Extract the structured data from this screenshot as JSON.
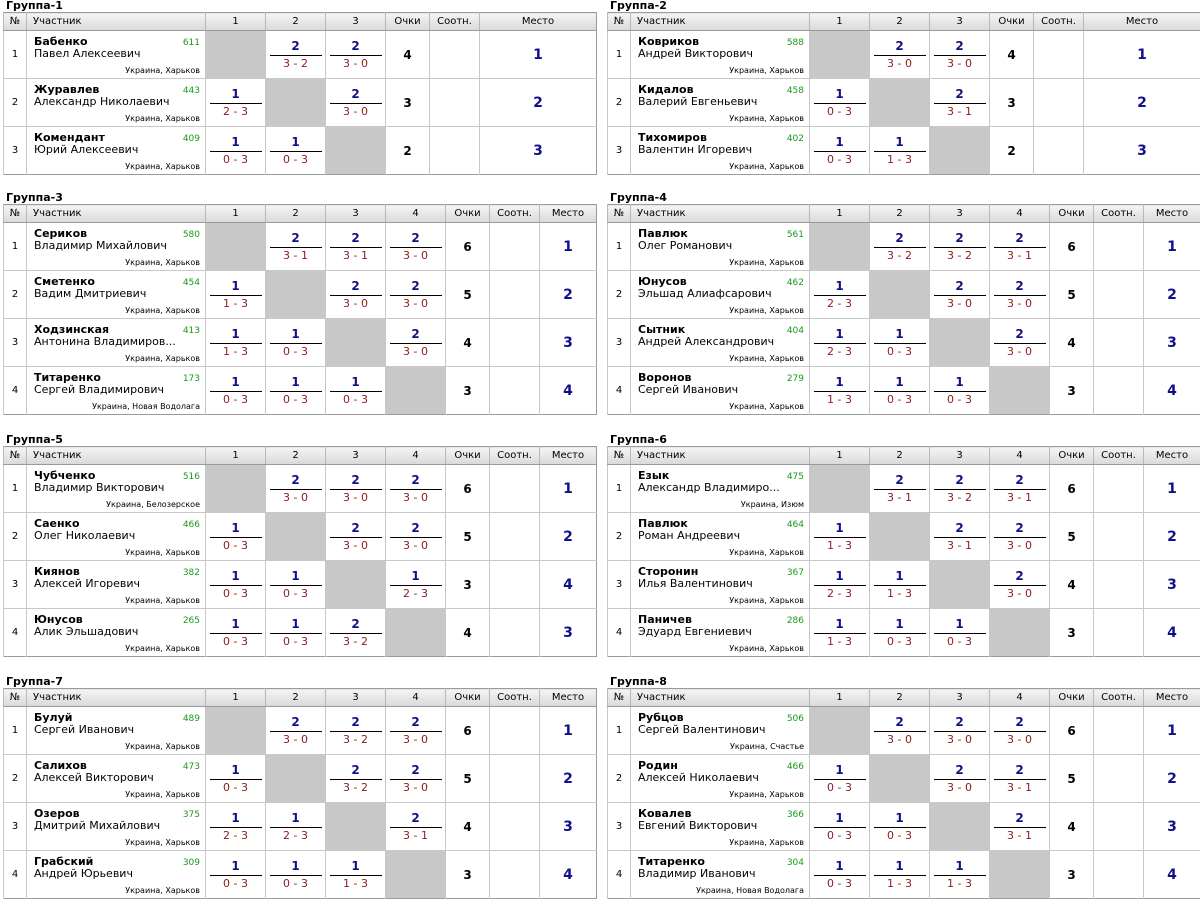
{
  "header_labels": {
    "no": "№",
    "participant": "Участник",
    "points": "Очки",
    "ratio": "Соотн.",
    "place": "Место"
  },
  "groups": [
    {
      "title": "Группа-1",
      "players": [
        {
          "last": "Бабенко",
          "first": "Павел Алексеевич",
          "rating": "611",
          "loc": "Украина, Харьков",
          "res": [
            null,
            [
              "2",
              "3 - 2"
            ],
            [
              "2",
              "3 - 0"
            ]
          ],
          "pts": "4",
          "place": "1"
        },
        {
          "last": "Журавлев",
          "first": "Александр Николаевич",
          "rating": "443",
          "loc": "Украина, Харьков",
          "res": [
            [
              "1",
              "2 - 3"
            ],
            null,
            [
              "2",
              "3 - 0"
            ]
          ],
          "pts": "3",
          "place": "2"
        },
        {
          "last": "Комендант",
          "first": "Юрий Алексеевич",
          "rating": "409",
          "loc": "Украина, Харьков",
          "res": [
            [
              "1",
              "0 - 3"
            ],
            [
              "1",
              "0 - 3"
            ],
            null
          ],
          "pts": "2",
          "place": "3"
        }
      ]
    },
    {
      "title": "Группа-2",
      "players": [
        {
          "last": "Ковриков",
          "first": "Андрей Викторович",
          "rating": "588",
          "loc": "Украина, Харьков",
          "res": [
            null,
            [
              "2",
              "3 - 0"
            ],
            [
              "2",
              "3 - 0"
            ]
          ],
          "pts": "4",
          "place": "1"
        },
        {
          "last": "Кидалов",
          "first": "Валерий Евгеньевич",
          "rating": "458",
          "loc": "Украина, Харьков",
          "res": [
            [
              "1",
              "0 - 3"
            ],
            null,
            [
              "2",
              "3 - 1"
            ]
          ],
          "pts": "3",
          "place": "2"
        },
        {
          "last": "Тихомиров",
          "first": "Валентин Игоревич",
          "rating": "402",
          "loc": "Украина, Харьков",
          "res": [
            [
              "1",
              "0 - 3"
            ],
            [
              "1",
              "1 - 3"
            ],
            null
          ],
          "pts": "2",
          "place": "3"
        }
      ]
    },
    {
      "title": "Группа-3",
      "players": [
        {
          "last": "Сериков",
          "first": "Владимир Михайлович",
          "rating": "580",
          "loc": "Украина, Харьков",
          "res": [
            null,
            [
              "2",
              "3 - 1"
            ],
            [
              "2",
              "3 - 1"
            ],
            [
              "2",
              "3 - 0"
            ]
          ],
          "pts": "6",
          "place": "1"
        },
        {
          "last": "Сметенко",
          "first": "Вадим Дмитриевич",
          "rating": "454",
          "loc": "Украина, Харьков",
          "res": [
            [
              "1",
              "1 - 3"
            ],
            null,
            [
              "2",
              "3 - 0"
            ],
            [
              "2",
              "3 - 0"
            ]
          ],
          "pts": "5",
          "place": "2"
        },
        {
          "last": "Ходзинская",
          "first": "Антонина Владимиров...",
          "rating": "413",
          "loc": "Украина, Харьков",
          "res": [
            [
              "1",
              "1 - 3"
            ],
            [
              "1",
              "0 - 3"
            ],
            null,
            [
              "2",
              "3 - 0"
            ]
          ],
          "pts": "4",
          "place": "3"
        },
        {
          "last": "Титаренко",
          "first": "Сергей Владимирович",
          "rating": "173",
          "loc": "Украина, Новая Водолага",
          "res": [
            [
              "1",
              "0 - 3"
            ],
            [
              "1",
              "0 - 3"
            ],
            [
              "1",
              "0 - 3"
            ],
            null
          ],
          "pts": "3",
          "place": "4"
        }
      ]
    },
    {
      "title": "Группа-4",
      "players": [
        {
          "last": "Павлюк",
          "first": "Олег Романович",
          "rating": "561",
          "loc": "Украина, Харьков",
          "res": [
            null,
            [
              "2",
              "3 - 2"
            ],
            [
              "2",
              "3 - 2"
            ],
            [
              "2",
              "3 - 1"
            ]
          ],
          "pts": "6",
          "place": "1"
        },
        {
          "last": "Юнусов",
          "first": "Эльшад Алиафсарович",
          "rating": "462",
          "loc": "Украина, Харьков",
          "res": [
            [
              "1",
              "2 - 3"
            ],
            null,
            [
              "2",
              "3 - 0"
            ],
            [
              "2",
              "3 - 0"
            ]
          ],
          "pts": "5",
          "place": "2"
        },
        {
          "last": "Сытник",
          "first": "Андрей Александрович",
          "rating": "404",
          "loc": "Украина, Харьков",
          "res": [
            [
              "1",
              "2 - 3"
            ],
            [
              "1",
              "0 - 3"
            ],
            null,
            [
              "2",
              "3 - 0"
            ]
          ],
          "pts": "4",
          "place": "3"
        },
        {
          "last": "Воронов",
          "first": "Сергей Иванович",
          "rating": "279",
          "loc": "Украина, Харьков",
          "res": [
            [
              "1",
              "1 - 3"
            ],
            [
              "1",
              "0 - 3"
            ],
            [
              "1",
              "0 - 3"
            ],
            null
          ],
          "pts": "3",
          "place": "4"
        }
      ]
    },
    {
      "title": "Группа-5",
      "players": [
        {
          "last": "Чубченко",
          "first": "Владимир Викторович",
          "rating": "516",
          "loc": "Украина, Белозерское",
          "res": [
            null,
            [
              "2",
              "3 - 0"
            ],
            [
              "2",
              "3 - 0"
            ],
            [
              "2",
              "3 - 0"
            ]
          ],
          "pts": "6",
          "place": "1"
        },
        {
          "last": "Саенко",
          "first": "Олег Николаевич",
          "rating": "466",
          "loc": "Украина, Харьков",
          "res": [
            [
              "1",
              "0 - 3"
            ],
            null,
            [
              "2",
              "3 - 0"
            ],
            [
              "2",
              "3 - 0"
            ]
          ],
          "pts": "5",
          "place": "2"
        },
        {
          "last": "Киянов",
          "first": "Алексей Игоревич",
          "rating": "382",
          "loc": "Украина, Харьков",
          "res": [
            [
              "1",
              "0 - 3"
            ],
            [
              "1",
              "0 - 3"
            ],
            null,
            [
              "1",
              "2 - 3"
            ]
          ],
          "pts": "3",
          "place": "4"
        },
        {
          "last": "Юнусов",
          "first": "Алик Эльшадович",
          "rating": "265",
          "loc": "Украина, Харьков",
          "res": [
            [
              "1",
              "0 - 3"
            ],
            [
              "1",
              "0 - 3"
            ],
            [
              "2",
              "3 - 2"
            ],
            null
          ],
          "pts": "4",
          "place": "3"
        }
      ]
    },
    {
      "title": "Группа-6",
      "players": [
        {
          "last": "Езык",
          "first": "Александр Владимиро...",
          "rating": "475",
          "loc": "Украина, Изюм",
          "res": [
            null,
            [
              "2",
              "3 - 1"
            ],
            [
              "2",
              "3 - 2"
            ],
            [
              "2",
              "3 - 1"
            ]
          ],
          "pts": "6",
          "place": "1"
        },
        {
          "last": "Павлюк",
          "first": "Роман Андреевич",
          "rating": "464",
          "loc": "Украина, Харьков",
          "res": [
            [
              "1",
              "1 - 3"
            ],
            null,
            [
              "2",
              "3 - 1"
            ],
            [
              "2",
              "3 - 0"
            ]
          ],
          "pts": "5",
          "place": "2"
        },
        {
          "last": "Сторонин",
          "first": "Илья Валентинович",
          "rating": "367",
          "loc": "Украина, Харьков",
          "res": [
            [
              "1",
              "2 - 3"
            ],
            [
              "1",
              "1 - 3"
            ],
            null,
            [
              "2",
              "3 - 0"
            ]
          ],
          "pts": "4",
          "place": "3"
        },
        {
          "last": "Паничев",
          "first": "Эдуард Евгениевич",
          "rating": "286",
          "loc": "Украина, Харьков",
          "res": [
            [
              "1",
              "1 - 3"
            ],
            [
              "1",
              "0 - 3"
            ],
            [
              "1",
              "0 - 3"
            ],
            null
          ],
          "pts": "3",
          "place": "4"
        }
      ]
    },
    {
      "title": "Группа-7",
      "players": [
        {
          "last": "Булуй",
          "first": "Сергей Иванович",
          "rating": "489",
          "loc": "Украина, Харьков",
          "res": [
            null,
            [
              "2",
              "3 - 0"
            ],
            [
              "2",
              "3 - 2"
            ],
            [
              "2",
              "3 - 0"
            ]
          ],
          "pts": "6",
          "place": "1"
        },
        {
          "last": "Салихов",
          "first": "Алексей Викторович",
          "rating": "473",
          "loc": "Украина, Харьков",
          "res": [
            [
              "1",
              "0 - 3"
            ],
            null,
            [
              "2",
              "3 - 2"
            ],
            [
              "2",
              "3 - 0"
            ]
          ],
          "pts": "5",
          "place": "2"
        },
        {
          "last": "Озеров",
          "first": "Дмитрий Михайлович",
          "rating": "375",
          "loc": "Украина, Харьков",
          "res": [
            [
              "1",
              "2 - 3"
            ],
            [
              "1",
              "2 - 3"
            ],
            null,
            [
              "2",
              "3 - 1"
            ]
          ],
          "pts": "4",
          "place": "3"
        },
        {
          "last": "Грабский",
          "first": "Андрей Юрьевич",
          "rating": "309",
          "loc": "Украина, Харьков",
          "res": [
            [
              "1",
              "0 - 3"
            ],
            [
              "1",
              "0 - 3"
            ],
            [
              "1",
              "1 - 3"
            ],
            null
          ],
          "pts": "3",
          "place": "4"
        }
      ]
    },
    {
      "title": "Группа-8",
      "players": [
        {
          "last": "Рубцов",
          "first": "Сергей Валентинович",
          "rating": "506",
          "loc": "Украина, Счастье",
          "res": [
            null,
            [
              "2",
              "3 - 0"
            ],
            [
              "2",
              "3 - 0"
            ],
            [
              "2",
              "3 - 0"
            ]
          ],
          "pts": "6",
          "place": "1"
        },
        {
          "last": "Родин",
          "first": "Алексей Николаевич",
          "rating": "466",
          "loc": "Украина, Харьков",
          "res": [
            [
              "1",
              "0 - 3"
            ],
            null,
            [
              "2",
              "3 - 0"
            ],
            [
              "2",
              "3 - 1"
            ]
          ],
          "pts": "5",
          "place": "2"
        },
        {
          "last": "Ковалев",
          "first": "Евгений Викторович",
          "rating": "366",
          "loc": "Украина, Харьков",
          "res": [
            [
              "1",
              "0 - 3"
            ],
            [
              "1",
              "0 - 3"
            ],
            null,
            [
              "2",
              "3 - 1"
            ]
          ],
          "pts": "4",
          "place": "3"
        },
        {
          "last": "Титаренко",
          "first": "Владимир Иванович",
          "rating": "304",
          "loc": "Украина, Новая Водолага",
          "res": [
            [
              "1",
              "0 - 3"
            ],
            [
              "1",
              "1 - 3"
            ],
            [
              "1",
              "1 - 3"
            ],
            null
          ],
          "pts": "3",
          "place": "4"
        }
      ]
    }
  ]
}
